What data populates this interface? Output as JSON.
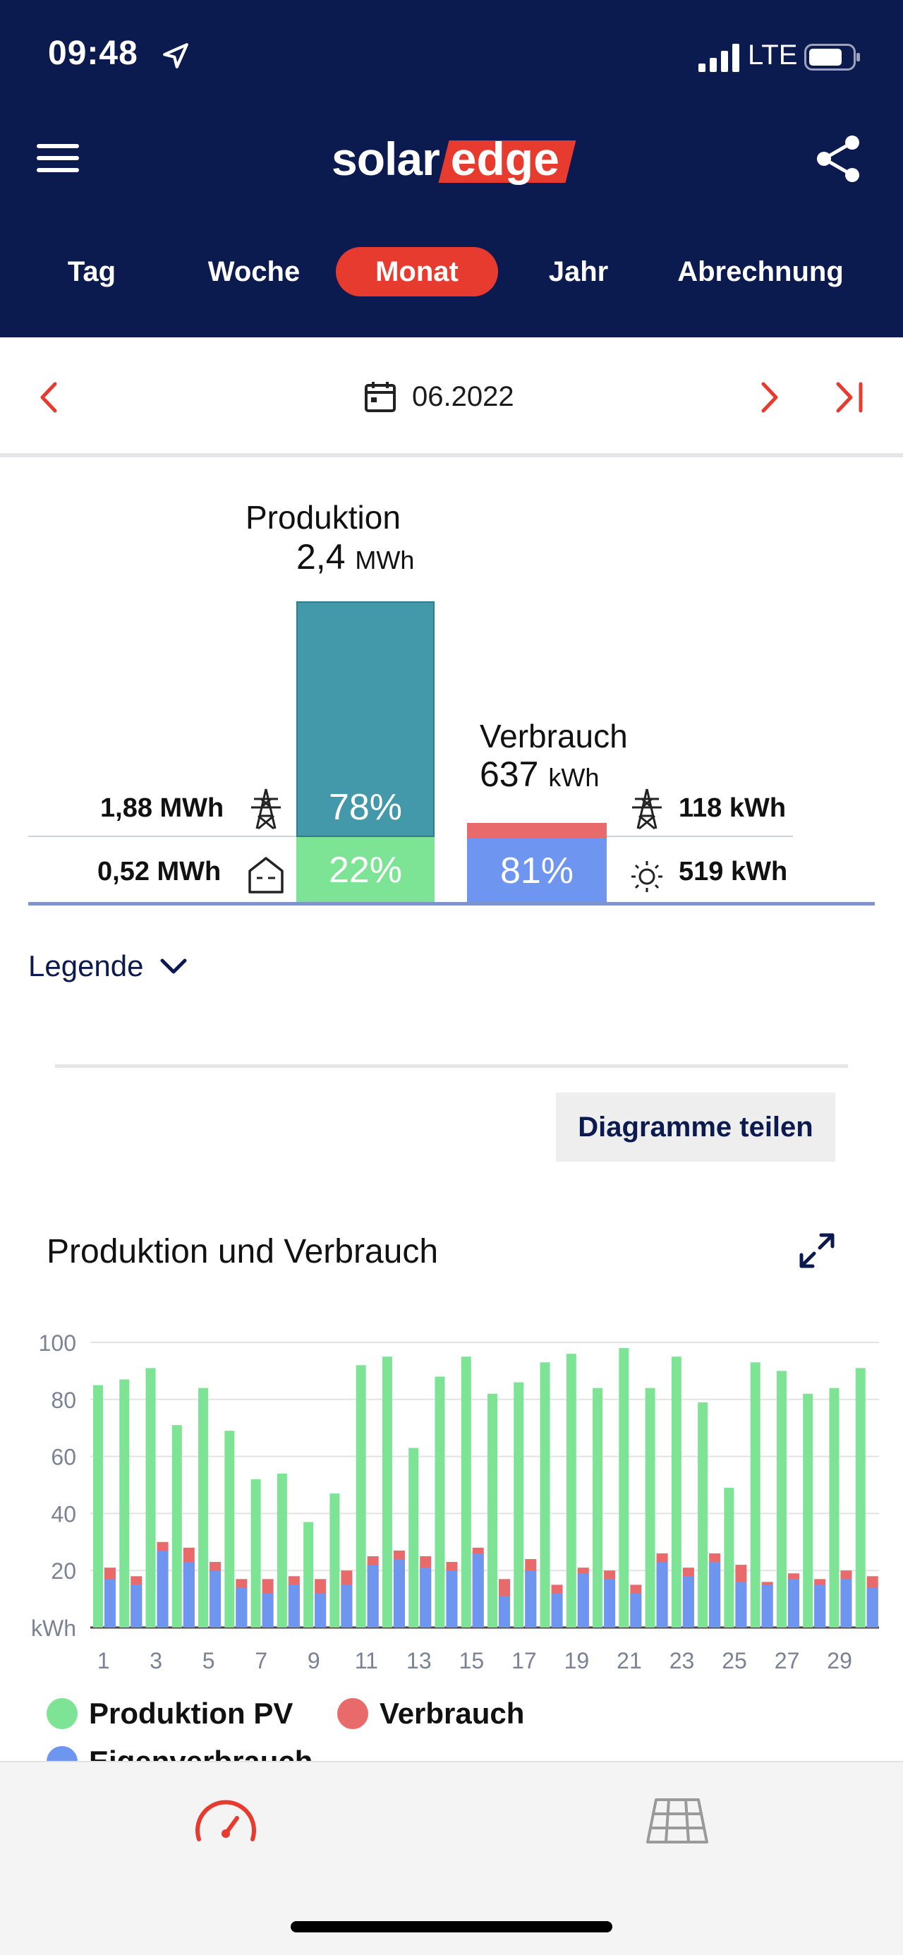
{
  "status_bar": {
    "time": "09:48",
    "network": "LTE"
  },
  "header": {
    "logo_text_1": "solar",
    "logo_text_2": "edge"
  },
  "tabs": [
    {
      "label": "Tag",
      "active": false
    },
    {
      "label": "Woche",
      "active": false
    },
    {
      "label": "Monat",
      "active": true
    },
    {
      "label": "Jahr",
      "active": false
    },
    {
      "label": "Abrechnung",
      "active": false
    }
  ],
  "date": {
    "label": "06.2022"
  },
  "summary": {
    "production_label": "Produktion",
    "production_value": "2,4",
    "production_unit": "MWh",
    "consumption_label": "Verbrauch",
    "consumption_value": "637",
    "consumption_unit": "kWh",
    "grid_export_value": "1,88 MWh",
    "self_use_value": "0,52 MWh",
    "prod_export_pct": "78%",
    "prod_self_pct": "22%",
    "cons_self_pct": "81%",
    "grid_import_value": "118 kWh",
    "solar_value": "519 kWh"
  },
  "legend_toggle": "Legende",
  "share_button": "Diagramme teilen",
  "chart_title": "Produktion und Verbrauch",
  "colors": {
    "header": "#0b1a4f",
    "accent": "#e63b2e",
    "production_export": "#4399aa",
    "production_self": "#7ee495",
    "consumption_self": "#6e96f0",
    "consumption_grid": "#e96a6a"
  },
  "chart_data": {
    "type": "bar",
    "ylabel": "kWh",
    "ylim": [
      0,
      100
    ],
    "yticks": [
      20,
      40,
      60,
      80,
      100
    ],
    "x": [
      1,
      2,
      3,
      4,
      5,
      6,
      7,
      8,
      9,
      10,
      11,
      12,
      13,
      14,
      15,
      16,
      17,
      18,
      19,
      20,
      21,
      22,
      23,
      24,
      25,
      26,
      27,
      28,
      29,
      30
    ],
    "xtick_labels": [
      "1",
      "3",
      "5",
      "7",
      "9",
      "11",
      "13",
      "15",
      "17",
      "19",
      "21",
      "23",
      "25",
      "27",
      "29"
    ],
    "series": [
      {
        "name": "Produktion PV",
        "color": "#7ee495",
        "values": [
          85,
          87,
          91,
          71,
          84,
          69,
          52,
          54,
          37,
          47,
          92,
          95,
          63,
          88,
          95,
          82,
          86,
          93,
          96,
          84,
          98,
          84,
          95,
          79,
          49,
          93,
          90,
          82,
          84,
          91
        ]
      },
      {
        "name": "Verbrauch",
        "color": "#e96a6a",
        "values": [
          21,
          18,
          30,
          28,
          23,
          17,
          17,
          18,
          17,
          20,
          25,
          27,
          25,
          23,
          28,
          17,
          24,
          15,
          21,
          20,
          15,
          26,
          21,
          26,
          22,
          16,
          19,
          17,
          20,
          18
        ]
      },
      {
        "name": "Eigenverbrauch",
        "color": "#6e96f0",
        "values": [
          17,
          15,
          27,
          23,
          20,
          14,
          12,
          15,
          12,
          15,
          22,
          24,
          21,
          20,
          26,
          11,
          20,
          12,
          19,
          17,
          12,
          23,
          18,
          23,
          16,
          15,
          17,
          15,
          17,
          14
        ]
      }
    ]
  }
}
